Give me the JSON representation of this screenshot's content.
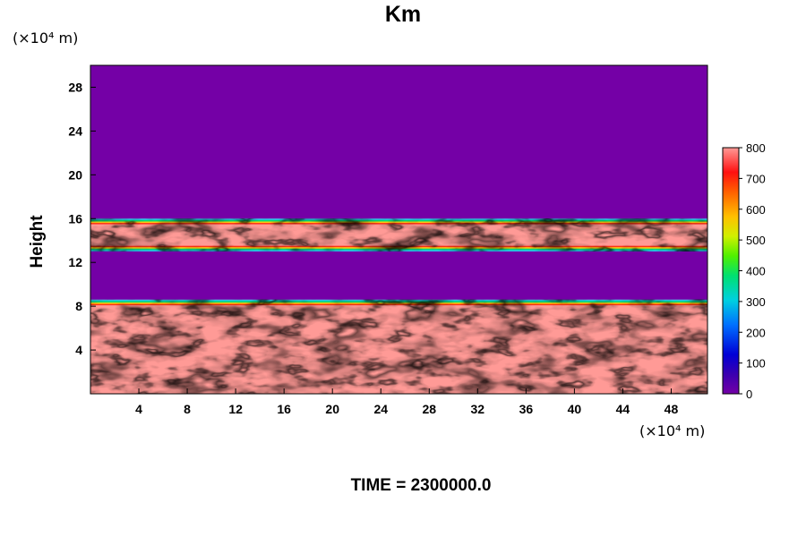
{
  "chart_data": {
    "type": "heatmap",
    "title": "Km",
    "ylabel": "Height",
    "y_unit": "(×10⁴ m)",
    "x_unit": "(×10⁴ m)",
    "footer": "TIME = 2300000.0",
    "xlim": [
      0,
      51
    ],
    "ylim": [
      0,
      30
    ],
    "xticks": [
      4,
      8,
      12,
      16,
      20,
      24,
      28,
      32,
      36,
      40,
      44,
      48
    ],
    "yticks": [
      4,
      8,
      12,
      16,
      20,
      24,
      28
    ],
    "colorbar": {
      "min": 0,
      "max": 800,
      "ticks": [
        0,
        100,
        200,
        300,
        400,
        500,
        600,
        700,
        800
      ]
    },
    "colors": {
      "low": "#7400a6",
      "high": "#ff9a96"
    },
    "regions": [
      {
        "band": "upper turbulent layer",
        "y_range": [
          13,
          16
        ],
        "value": 800
      },
      {
        "band": "lower turbulent layer",
        "y_range": [
          0,
          8.6
        ],
        "value": 800
      },
      {
        "band": "quiescent layers",
        "y_range": [
          8.6,
          13
        ],
        "value": 0
      },
      {
        "band": "upper quiescent",
        "y_range": [
          16,
          30
        ],
        "value": 0
      }
    ]
  }
}
